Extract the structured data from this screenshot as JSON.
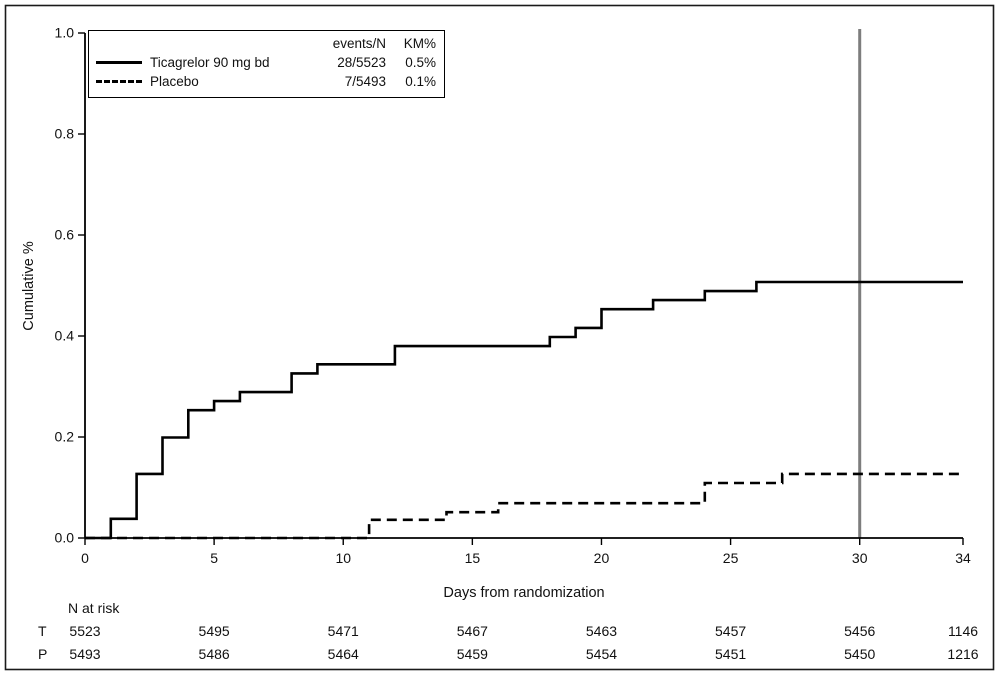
{
  "chart_data": {
    "type": "line",
    "step": true,
    "title": "",
    "xlabel": "Days from randomization",
    "ylabel": "Cumulative %",
    "xlim": [
      0,
      34
    ],
    "ylim": [
      0,
      1
    ],
    "xticks": [
      0,
      5,
      10,
      15,
      20,
      25,
      30,
      34
    ],
    "yticks": [
      0.0,
      0.2,
      0.4,
      0.6,
      0.8,
      1.0
    ],
    "ytick_labels": [
      "0.0",
      "0.2",
      "0.4",
      "0.6",
      "0.8",
      "1.0"
    ],
    "grid": false,
    "reference_line": {
      "x": 30,
      "color": "#7d7d7d"
    },
    "legend": {
      "position": "top-left",
      "columns": {
        "events": "events/N",
        "km": "KM%"
      },
      "entries": [
        {
          "label": "Ticagrelor 90 mg bd",
          "line_style": "solid",
          "events_n": "28/5523",
          "km_pct": "0.5%"
        },
        {
          "label": "Placebo",
          "line_style": "dashed",
          "events_n": "7/5493",
          "km_pct": "0.1%"
        }
      ]
    },
    "series": [
      {
        "name": "Ticagrelor 90 mg bd",
        "line_style": "solid",
        "color": "#000000",
        "points": [
          [
            0,
            0
          ],
          [
            1,
            0.038
          ],
          [
            2,
            0.127
          ],
          [
            3,
            0.199
          ],
          [
            4,
            0.253
          ],
          [
            5,
            0.271
          ],
          [
            6,
            0.289
          ],
          [
            8,
            0.326
          ],
          [
            9,
            0.344
          ],
          [
            12,
            0.38
          ],
          [
            18,
            0.398
          ],
          [
            19,
            0.416
          ],
          [
            20,
            0.453
          ],
          [
            22,
            0.471
          ],
          [
            24,
            0.489
          ],
          [
            26,
            0.507
          ],
          [
            34,
            0.507
          ]
        ]
      },
      {
        "name": "Placebo",
        "line_style": "dashed",
        "color": "#000000",
        "points": [
          [
            0,
            0
          ],
          [
            11,
            0.036
          ],
          [
            14,
            0.051
          ],
          [
            16,
            0.069
          ],
          [
            24,
            0.109
          ],
          [
            27,
            0.127
          ],
          [
            34,
            0.127
          ]
        ]
      }
    ],
    "n_at_risk": {
      "header": "N at risk",
      "x_values": [
        0,
        5,
        10,
        15,
        20,
        25,
        30,
        34
      ],
      "rows": [
        {
          "label": "T",
          "values": [
            "5523",
            "5495",
            "5471",
            "5467",
            "5463",
            "5457",
            "5456",
            "1146"
          ]
        },
        {
          "label": "P",
          "values": [
            "5493",
            "5486",
            "5464",
            "5459",
            "5454",
            "5451",
            "5450",
            "1216"
          ]
        }
      ]
    }
  }
}
